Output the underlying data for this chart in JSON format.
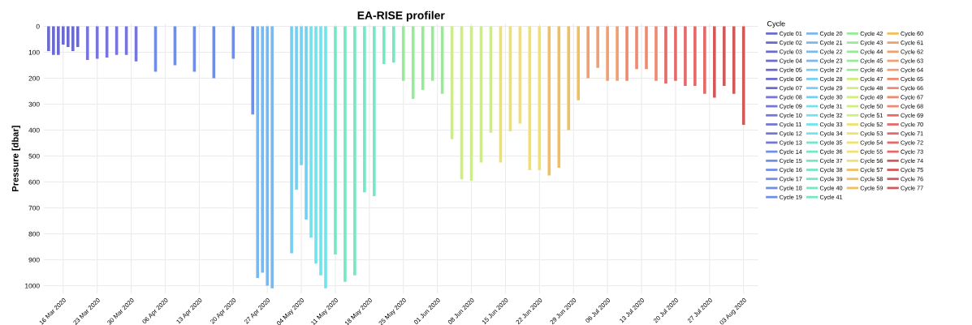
{
  "chart_data": {
    "type": "line",
    "title": "EA-RISE profiler",
    "ylabel": "Pressure [dbar]",
    "legend_title": "Cycle",
    "legend": "right",
    "grid": true,
    "line_style": "solid",
    "marker": "none",
    "ylim": [
      1030,
      -10
    ],
    "yticks": [
      0,
      100,
      200,
      300,
      400,
      500,
      600,
      700,
      800,
      900,
      1000
    ],
    "xlim": [
      "2020-03-12",
      "2020-08-06"
    ],
    "xticks": [
      {
        "value": "2020-03-16",
        "label": "16 Mar 2020"
      },
      {
        "value": "2020-03-23",
        "label": "23 Mar 2020"
      },
      {
        "value": "2020-03-30",
        "label": "30 Mar 2020"
      },
      {
        "value": "2020-04-06",
        "label": "06 Apr 2020"
      },
      {
        "value": "2020-04-13",
        "label": "13 Apr 2020"
      },
      {
        "value": "2020-04-20",
        "label": "20 Apr 2020"
      },
      {
        "value": "2020-04-27",
        "label": "27 Apr 2020"
      },
      {
        "value": "2020-05-04",
        "label": "04 May 2020"
      },
      {
        "value": "2020-05-11",
        "label": "11 May 2020"
      },
      {
        "value": "2020-05-18",
        "label": "18 May 2020"
      },
      {
        "value": "2020-05-25",
        "label": "25 May 2020"
      },
      {
        "value": "2020-06-01",
        "label": "01 Jun 2020"
      },
      {
        "value": "2020-06-08",
        "label": "08 Jun 2020"
      },
      {
        "value": "2020-06-15",
        "label": "15 Jun 2020"
      },
      {
        "value": "2020-06-22",
        "label": "22 Jun 2020"
      },
      {
        "value": "2020-06-29",
        "label": "29 Jun 2020"
      },
      {
        "value": "2020-07-06",
        "label": "06 Jul 2020"
      },
      {
        "value": "2020-07-13",
        "label": "13 Jul 2020"
      },
      {
        "value": "2020-07-20",
        "label": "20 Jul 2020"
      },
      {
        "value": "2020-07-27",
        "label": "27 Jul 2020"
      },
      {
        "value": "2020-08-03",
        "label": "03 Aug 2020"
      }
    ],
    "series": [
      {
        "name": "Cycle 01",
        "color": "#6a6ad0",
        "x": [
          "2020-03-13",
          "2020-03-13"
        ],
        "values": [
          0,
          95
        ]
      },
      {
        "name": "Cycle 02",
        "color": "#6a6ad0",
        "x": [
          "2020-03-14",
          "2020-03-14"
        ],
        "values": [
          0,
          110
        ]
      },
      {
        "name": "Cycle 03",
        "color": "#6a6ad0",
        "x": [
          "2020-03-15",
          "2020-03-15"
        ],
        "values": [
          0,
          110
        ]
      },
      {
        "name": "Cycle 04",
        "color": "#6a6ad0",
        "x": [
          "2020-03-16",
          "2020-03-16"
        ],
        "values": [
          0,
          70
        ]
      },
      {
        "name": "Cycle 05",
        "color": "#6a6ad0",
        "x": [
          "2020-03-17",
          "2020-03-17"
        ],
        "values": [
          0,
          80
        ]
      },
      {
        "name": "Cycle 06",
        "color": "#6a6ad0",
        "x": [
          "2020-03-18",
          "2020-03-18"
        ],
        "values": [
          0,
          95
        ]
      },
      {
        "name": "Cycle 07",
        "color": "#6a6ad0",
        "x": [
          "2020-03-19",
          "2020-03-19"
        ],
        "values": [
          0,
          80
        ]
      },
      {
        "name": "Cycle 08",
        "color": "#7575dc",
        "x": [
          "2020-03-21",
          "2020-03-21"
        ],
        "values": [
          0,
          130
        ]
      },
      {
        "name": "Cycle 09",
        "color": "#7575dc",
        "x": [
          "2020-03-23",
          "2020-03-23"
        ],
        "values": [
          0,
          125
        ]
      },
      {
        "name": "Cycle 10",
        "color": "#7575dc",
        "x": [
          "2020-03-25",
          "2020-03-25"
        ],
        "values": [
          0,
          120
        ]
      },
      {
        "name": "Cycle 11",
        "color": "#7575dc",
        "x": [
          "2020-03-27",
          "2020-03-27"
        ],
        "values": [
          0,
          110
        ]
      },
      {
        "name": "Cycle 12",
        "color": "#7575dc",
        "x": [
          "2020-03-29",
          "2020-03-29"
        ],
        "values": [
          0,
          110
        ]
      },
      {
        "name": "Cycle 13",
        "color": "#7575dc",
        "x": [
          "2020-03-31",
          "2020-03-31"
        ],
        "values": [
          0,
          135
        ]
      },
      {
        "name": "Cycle 14",
        "color": "#6f8fe6",
        "x": [
          "2020-04-04",
          "2020-04-04"
        ],
        "values": [
          0,
          175
        ]
      },
      {
        "name": "Cycle 15",
        "color": "#6f8fe6",
        "x": [
          "2020-04-08",
          "2020-04-08"
        ],
        "values": [
          0,
          150
        ]
      },
      {
        "name": "Cycle 16",
        "color": "#6f8fe6",
        "x": [
          "2020-04-12",
          "2020-04-12"
        ],
        "values": [
          0,
          175
        ]
      },
      {
        "name": "Cycle 17",
        "color": "#6f8fe6",
        "x": [
          "2020-04-16",
          "2020-04-16"
        ],
        "values": [
          0,
          200
        ]
      },
      {
        "name": "Cycle 18",
        "color": "#6f8fe6",
        "x": [
          "2020-04-20",
          "2020-04-20"
        ],
        "values": [
          0,
          125
        ]
      },
      {
        "name": "Cycle 19",
        "color": "#6f8fe6",
        "x": [
          "2020-04-24",
          "2020-04-24"
        ],
        "values": [
          0,
          340
        ]
      },
      {
        "name": "Cycle 20",
        "color": "#7ab8f0",
        "x": [
          "2020-04-25",
          "2020-04-25"
        ],
        "values": [
          0,
          970
        ]
      },
      {
        "name": "Cycle 21",
        "color": "#7ab8f0",
        "x": [
          "2020-04-26",
          "2020-04-26"
        ],
        "values": [
          0,
          950
        ]
      },
      {
        "name": "Cycle 22",
        "color": "#7ab8f0",
        "x": [
          "2020-04-27",
          "2020-04-27"
        ],
        "values": [
          0,
          1000
        ]
      },
      {
        "name": "Cycle 23",
        "color": "#7ab8f0",
        "x": [
          "2020-04-28",
          "2020-04-28"
        ],
        "values": [
          0,
          1010
        ]
      },
      {
        "name": "Cycle 27",
        "color": "#74d0f2",
        "x": [
          "2020-05-02",
          "2020-05-02"
        ],
        "values": [
          0,
          875
        ]
      },
      {
        "name": "Cycle 28",
        "color": "#74d0f2",
        "x": [
          "2020-05-03",
          "2020-05-03"
        ],
        "values": [
          0,
          630
        ]
      },
      {
        "name": "Cycle 29",
        "color": "#74d0f2",
        "x": [
          "2020-05-04",
          "2020-05-04"
        ],
        "values": [
          0,
          535
        ]
      },
      {
        "name": "Cycle 30",
        "color": "#74d0f2",
        "x": [
          "2020-05-05",
          "2020-05-05"
        ],
        "values": [
          0,
          745
        ]
      },
      {
        "name": "Cycle 31",
        "color": "#70e4ec",
        "x": [
          "2020-05-06",
          "2020-05-06"
        ],
        "values": [
          0,
          815
        ]
      },
      {
        "name": "Cycle 32",
        "color": "#70e4ec",
        "x": [
          "2020-05-07",
          "2020-05-07"
        ],
        "values": [
          0,
          915
        ]
      },
      {
        "name": "Cycle 33",
        "color": "#70e4ec",
        "x": [
          "2020-05-08",
          "2020-05-08"
        ],
        "values": [
          0,
          960
        ]
      },
      {
        "name": "Cycle 34",
        "color": "#70e4ec",
        "x": [
          "2020-05-09",
          "2020-05-09"
        ],
        "values": [
          0,
          1010
        ]
      },
      {
        "name": "Cycle 35",
        "color": "#74e8c4",
        "x": [
          "2020-05-11",
          "2020-05-11"
        ],
        "values": [
          0,
          880
        ]
      },
      {
        "name": "Cycle 36",
        "color": "#74e8c4",
        "x": [
          "2020-05-13",
          "2020-05-13"
        ],
        "values": [
          0,
          985
        ]
      },
      {
        "name": "Cycle 37",
        "color": "#74e8c4",
        "x": [
          "2020-05-15",
          "2020-05-15"
        ],
        "values": [
          0,
          960
        ]
      },
      {
        "name": "Cycle 38",
        "color": "#74e8c4",
        "x": [
          "2020-05-17",
          "2020-05-17"
        ],
        "values": [
          0,
          640
        ]
      },
      {
        "name": "Cycle 39",
        "color": "#74e8c4",
        "x": [
          "2020-05-19",
          "2020-05-19"
        ],
        "values": [
          0,
          655
        ]
      },
      {
        "name": "Cycle 40",
        "color": "#74e8c4",
        "x": [
          "2020-05-21",
          "2020-05-21"
        ],
        "values": [
          0,
          145
        ]
      },
      {
        "name": "Cycle 41",
        "color": "#74e8c4",
        "x": [
          "2020-05-23",
          "2020-05-23"
        ],
        "values": [
          0,
          140
        ]
      },
      {
        "name": "Cycle 42",
        "color": "#96ec96",
        "x": [
          "2020-05-25",
          "2020-05-25"
        ],
        "values": [
          0,
          210
        ]
      },
      {
        "name": "Cycle 43",
        "color": "#96ec96",
        "x": [
          "2020-05-27",
          "2020-05-27"
        ],
        "values": [
          0,
          280
        ]
      },
      {
        "name": "Cycle 44",
        "color": "#96ec96",
        "x": [
          "2020-05-29",
          "2020-05-29"
        ],
        "values": [
          0,
          245
        ]
      },
      {
        "name": "Cycle 45",
        "color": "#96ec96",
        "x": [
          "2020-05-31",
          "2020-05-31"
        ],
        "values": [
          0,
          210
        ]
      },
      {
        "name": "Cycle 46",
        "color": "#96ec96",
        "x": [
          "2020-06-02",
          "2020-06-02"
        ],
        "values": [
          0,
          260
        ]
      },
      {
        "name": "Cycle 47",
        "color": "#cdf07a",
        "x": [
          "2020-06-04",
          "2020-06-04"
        ],
        "values": [
          0,
          435
        ]
      },
      {
        "name": "Cycle 48",
        "color": "#cdf07a",
        "x": [
          "2020-06-06",
          "2020-06-06"
        ],
        "values": [
          0,
          590
        ]
      },
      {
        "name": "Cycle 49",
        "color": "#cdf07a",
        "x": [
          "2020-06-08",
          "2020-06-08"
        ],
        "values": [
          0,
          595
        ]
      },
      {
        "name": "Cycle 50",
        "color": "#cdf07a",
        "x": [
          "2020-06-10",
          "2020-06-10"
        ],
        "values": [
          0,
          525
        ]
      },
      {
        "name": "Cycle 51",
        "color": "#cdf07a",
        "x": [
          "2020-06-12",
          "2020-06-12"
        ],
        "values": [
          0,
          410
        ]
      },
      {
        "name": "Cycle 52",
        "color": "#f0e070",
        "x": [
          "2020-06-14",
          "2020-06-14"
        ],
        "values": [
          0,
          525
        ]
      },
      {
        "name": "Cycle 53",
        "color": "#f0e070",
        "x": [
          "2020-06-16",
          "2020-06-16"
        ],
        "values": [
          0,
          405
        ]
      },
      {
        "name": "Cycle 54",
        "color": "#f0e070",
        "x": [
          "2020-06-18",
          "2020-06-18"
        ],
        "values": [
          0,
          375
        ]
      },
      {
        "name": "Cycle 55",
        "color": "#f0e070",
        "x": [
          "2020-06-20",
          "2020-06-20"
        ],
        "values": [
          0,
          555
        ]
      },
      {
        "name": "Cycle 56",
        "color": "#f0e070",
        "x": [
          "2020-06-22",
          "2020-06-22"
        ],
        "values": [
          0,
          555
        ]
      },
      {
        "name": "Cycle 57",
        "color": "#f0c060",
        "x": [
          "2020-06-24",
          "2020-06-24"
        ],
        "values": [
          0,
          575
        ]
      },
      {
        "name": "Cycle 58",
        "color": "#f0c060",
        "x": [
          "2020-06-26",
          "2020-06-26"
        ],
        "values": [
          0,
          545
        ]
      },
      {
        "name": "Cycle 59",
        "color": "#f0c060",
        "x": [
          "2020-06-28",
          "2020-06-28"
        ],
        "values": [
          0,
          400
        ]
      },
      {
        "name": "Cycle 60",
        "color": "#f0c060",
        "x": [
          "2020-06-30",
          "2020-06-30"
        ],
        "values": [
          0,
          285
        ]
      },
      {
        "name": "Cycle 61",
        "color": "#f0a070",
        "x": [
          "2020-07-02",
          "2020-07-02"
        ],
        "values": [
          0,
          200
        ]
      },
      {
        "name": "Cycle 62",
        "color": "#f0a070",
        "x": [
          "2020-07-04",
          "2020-07-04"
        ],
        "values": [
          0,
          160
        ]
      },
      {
        "name": "Cycle 63",
        "color": "#f0a070",
        "x": [
          "2020-07-06",
          "2020-07-06"
        ],
        "values": [
          0,
          210
        ]
      },
      {
        "name": "Cycle 64",
        "color": "#f0a070",
        "x": [
          "2020-07-08",
          "2020-07-08"
        ],
        "values": [
          0,
          210
        ]
      },
      {
        "name": "Cycle 65",
        "color": "#ee8a70",
        "x": [
          "2020-07-10",
          "2020-07-10"
        ],
        "values": [
          0,
          210
        ]
      },
      {
        "name": "Cycle 66",
        "color": "#ee8a70",
        "x": [
          "2020-07-12",
          "2020-07-12"
        ],
        "values": [
          0,
          165
        ]
      },
      {
        "name": "Cycle 67",
        "color": "#ee8a70",
        "x": [
          "2020-07-14",
          "2020-07-14"
        ],
        "values": [
          0,
          165
        ]
      },
      {
        "name": "Cycle 68",
        "color": "#ee8a70",
        "x": [
          "2020-07-16",
          "2020-07-16"
        ],
        "values": [
          0,
          210
        ]
      },
      {
        "name": "Cycle 69",
        "color": "#e46a6a",
        "x": [
          "2020-07-18",
          "2020-07-18"
        ],
        "values": [
          0,
          220
        ]
      },
      {
        "name": "Cycle 70",
        "color": "#e46a6a",
        "x": [
          "2020-07-20",
          "2020-07-20"
        ],
        "values": [
          0,
          210
        ]
      },
      {
        "name": "Cycle 71",
        "color": "#e46a6a",
        "x": [
          "2020-07-22",
          "2020-07-22"
        ],
        "values": [
          0,
          230
        ]
      },
      {
        "name": "Cycle 72",
        "color": "#e46a6a",
        "x": [
          "2020-07-24",
          "2020-07-24"
        ],
        "values": [
          0,
          230
        ]
      },
      {
        "name": "Cycle 73",
        "color": "#e46a6a",
        "x": [
          "2020-07-26",
          "2020-07-26"
        ],
        "values": [
          0,
          260
        ]
      },
      {
        "name": "Cycle 74",
        "color": "#d05a5a",
        "x": [
          "2020-07-28",
          "2020-07-28"
        ],
        "values": [
          0,
          275
        ]
      },
      {
        "name": "Cycle 75",
        "color": "#d05a5a",
        "x": [
          "2020-07-30",
          "2020-07-30"
        ],
        "values": [
          0,
          230
        ]
      },
      {
        "name": "Cycle 76",
        "color": "#d05a5a",
        "x": [
          "2020-08-01",
          "2020-08-01"
        ],
        "values": [
          0,
          260
        ]
      },
      {
        "name": "Cycle 77",
        "color": "#d05a5a",
        "x": [
          "2020-08-03",
          "2020-08-03"
        ],
        "values": [
          0,
          380
        ]
      }
    ]
  }
}
